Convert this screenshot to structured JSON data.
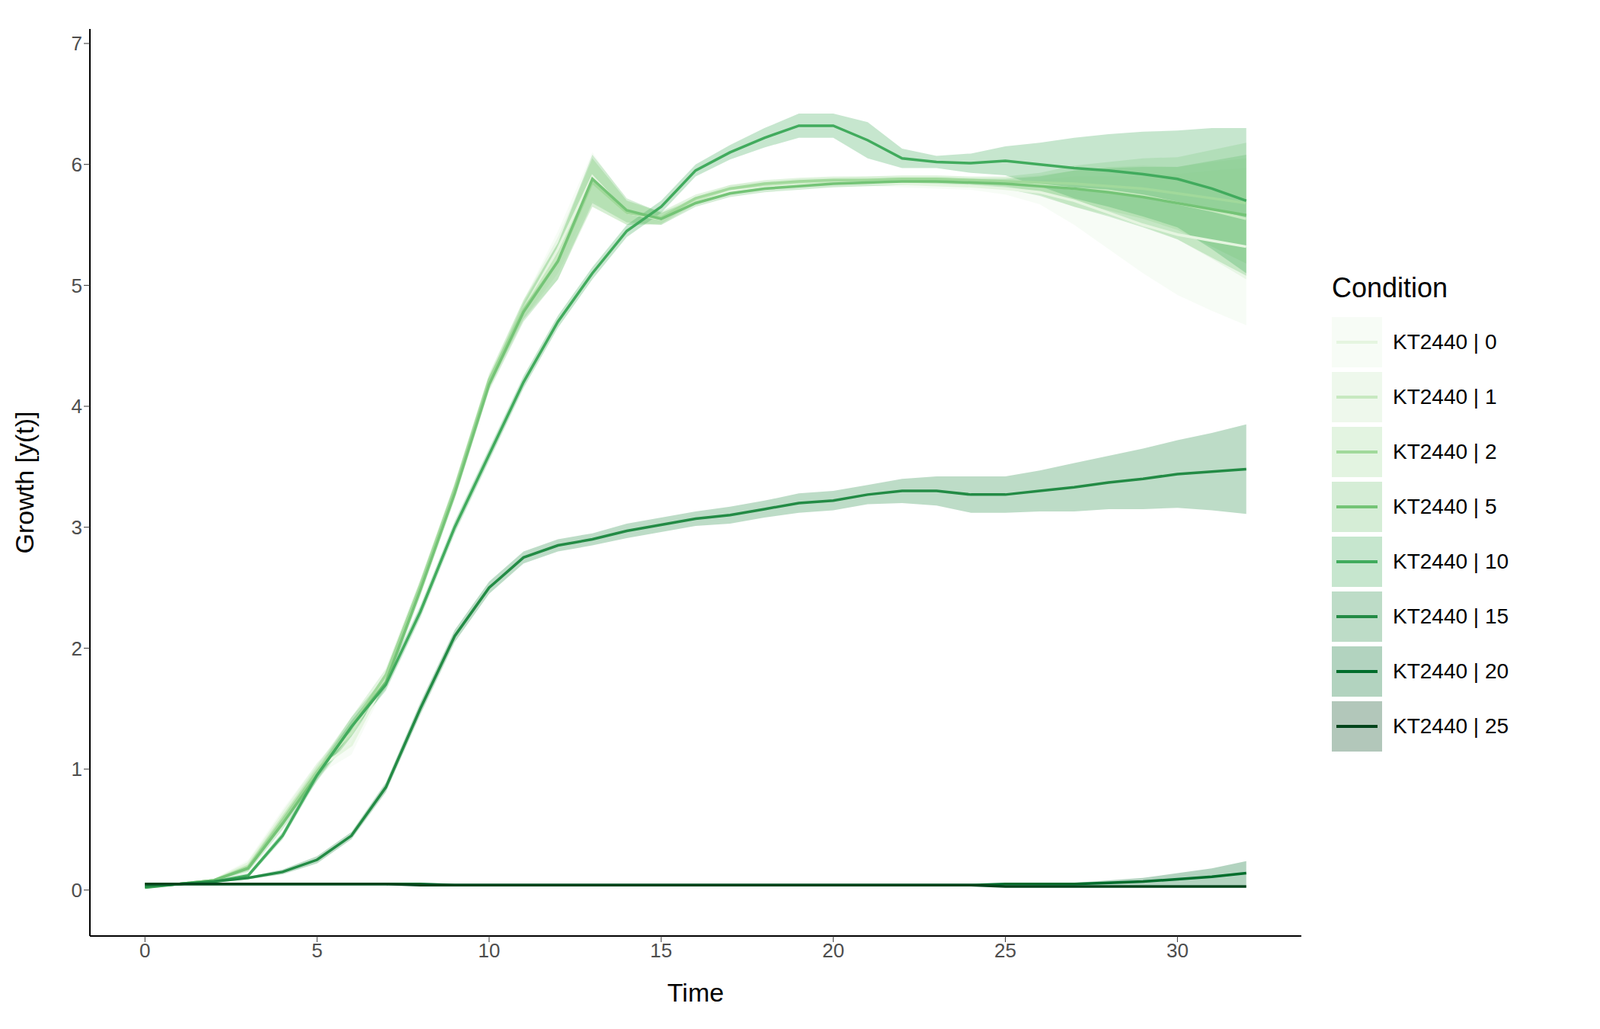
{
  "chart_data": {
    "type": "line",
    "x_label": "Time",
    "y_label": "Growth [y(t)]",
    "legend_title": "Condition",
    "legend": "right",
    "xlim": [
      -1.6,
      33.6
    ],
    "xticks": [
      0,
      5,
      10,
      15,
      20,
      25,
      30
    ],
    "ylim": [
      -0.38,
      7.12
    ],
    "yticks": [
      0,
      1,
      2,
      3,
      4,
      5,
      6,
      7
    ],
    "x": [
      0,
      1,
      2,
      3,
      4,
      5,
      6,
      7,
      8,
      9,
      10,
      11,
      12,
      13,
      14,
      15,
      16,
      17,
      18,
      19,
      20,
      21,
      22,
      23,
      24,
      25,
      26,
      27,
      28,
      29,
      30,
      31,
      32
    ],
    "series": [
      {
        "name": "KT2440 | 0",
        "color": "#e5f5e0",
        "values": [
          0.03,
          0.05,
          0.08,
          0.22,
          0.62,
          1.0,
          1.2,
          1.75,
          2.5,
          3.3,
          4.2,
          4.8,
          5.3,
          5.9,
          5.6,
          5.55,
          5.7,
          5.78,
          5.82,
          5.84,
          5.84,
          5.85,
          5.84,
          5.83,
          5.82,
          5.8,
          5.77,
          5.7,
          5.6,
          5.5,
          5.42,
          5.37,
          5.32
        ],
        "error": [
          0.01,
          0.01,
          0.01,
          0.03,
          0.05,
          0.05,
          0.08,
          0.05,
          0.05,
          0.05,
          0.05,
          0.08,
          0.15,
          0.2,
          0.1,
          0.05,
          0.03,
          0.03,
          0.03,
          0.03,
          0.03,
          0.03,
          0.03,
          0.03,
          0.03,
          0.05,
          0.1,
          0.2,
          0.3,
          0.4,
          0.5,
          0.58,
          0.65
        ]
      },
      {
        "name": "KT2440 | 1",
        "color": "#c7e9c0",
        "values": [
          0.03,
          0.05,
          0.08,
          0.2,
          0.6,
          1.0,
          1.3,
          1.75,
          2.5,
          3.3,
          4.2,
          4.8,
          5.25,
          5.85,
          5.6,
          5.55,
          5.7,
          5.8,
          5.83,
          5.85,
          5.86,
          5.87,
          5.87,
          5.87,
          5.86,
          5.85,
          5.83,
          5.8,
          5.78,
          5.74,
          5.68,
          5.62,
          5.55
        ],
        "error": [
          0.01,
          0.01,
          0.01,
          0.03,
          0.05,
          0.05,
          0.08,
          0.05,
          0.05,
          0.05,
          0.05,
          0.08,
          0.15,
          0.2,
          0.1,
          0.05,
          0.03,
          0.03,
          0.03,
          0.03,
          0.03,
          0.03,
          0.03,
          0.03,
          0.03,
          0.04,
          0.08,
          0.15,
          0.2,
          0.25,
          0.3,
          0.4,
          0.5
        ]
      },
      {
        "name": "KT2440 | 2",
        "color": "#a1d99b",
        "values": [
          0.03,
          0.05,
          0.08,
          0.19,
          0.58,
          0.98,
          1.35,
          1.78,
          2.52,
          3.32,
          4.22,
          4.8,
          5.2,
          5.85,
          5.6,
          5.56,
          5.72,
          5.8,
          5.84,
          5.86,
          5.87,
          5.87,
          5.88,
          5.88,
          5.87,
          5.86,
          5.85,
          5.84,
          5.82,
          5.8,
          5.76,
          5.72,
          5.68
        ],
        "error": [
          0.01,
          0.01,
          0.01,
          0.03,
          0.05,
          0.05,
          0.08,
          0.05,
          0.05,
          0.05,
          0.05,
          0.08,
          0.15,
          0.2,
          0.1,
          0.05,
          0.03,
          0.03,
          0.03,
          0.03,
          0.03,
          0.03,
          0.03,
          0.03,
          0.03,
          0.04,
          0.08,
          0.15,
          0.2,
          0.25,
          0.3,
          0.4,
          0.5
        ]
      },
      {
        "name": "KT2440 | 5",
        "color": "#74c476",
        "values": [
          0.03,
          0.05,
          0.08,
          0.18,
          0.55,
          0.95,
          1.35,
          1.72,
          2.48,
          3.28,
          4.18,
          4.78,
          5.2,
          5.88,
          5.62,
          5.55,
          5.68,
          5.76,
          5.8,
          5.82,
          5.84,
          5.85,
          5.86,
          5.86,
          5.85,
          5.84,
          5.82,
          5.8,
          5.77,
          5.73,
          5.68,
          5.63,
          5.58
        ],
        "error": [
          0.01,
          0.01,
          0.01,
          0.03,
          0.05,
          0.05,
          0.08,
          0.05,
          0.05,
          0.05,
          0.05,
          0.08,
          0.15,
          0.2,
          0.1,
          0.05,
          0.03,
          0.03,
          0.03,
          0.03,
          0.03,
          0.03,
          0.03,
          0.03,
          0.03,
          0.04,
          0.08,
          0.15,
          0.2,
          0.25,
          0.3,
          0.4,
          0.5
        ]
      },
      {
        "name": "KT2440 | 10",
        "color": "#41ab5d",
        "values": [
          0.02,
          0.05,
          0.07,
          0.12,
          0.45,
          0.95,
          1.35,
          1.7,
          2.3,
          3.0,
          3.6,
          4.2,
          4.7,
          5.1,
          5.45,
          5.65,
          5.95,
          6.1,
          6.22,
          6.32,
          6.32,
          6.2,
          6.05,
          6.02,
          6.01,
          6.03,
          6.0,
          5.97,
          5.95,
          5.92,
          5.88,
          5.8,
          5.7
        ],
        "error": [
          0.01,
          0.01,
          0.01,
          0.02,
          0.03,
          0.04,
          0.05,
          0.05,
          0.05,
          0.05,
          0.05,
          0.05,
          0.05,
          0.05,
          0.05,
          0.05,
          0.05,
          0.06,
          0.08,
          0.1,
          0.1,
          0.15,
          0.08,
          0.05,
          0.08,
          0.12,
          0.18,
          0.25,
          0.3,
          0.35,
          0.4,
          0.5,
          0.6
        ]
      },
      {
        "name": "KT2440 | 15",
        "color": "#238b45",
        "values": [
          0.03,
          0.05,
          0.07,
          0.1,
          0.15,
          0.25,
          0.45,
          0.85,
          1.5,
          2.1,
          2.5,
          2.75,
          2.85,
          2.9,
          2.97,
          3.02,
          3.07,
          3.1,
          3.15,
          3.2,
          3.22,
          3.27,
          3.3,
          3.3,
          3.27,
          3.27,
          3.3,
          3.33,
          3.37,
          3.4,
          3.44,
          3.46,
          3.48
        ],
        "error": [
          0.01,
          0.01,
          0.01,
          0.01,
          0.02,
          0.03,
          0.03,
          0.04,
          0.05,
          0.05,
          0.05,
          0.05,
          0.05,
          0.05,
          0.06,
          0.06,
          0.06,
          0.07,
          0.07,
          0.08,
          0.08,
          0.08,
          0.1,
          0.12,
          0.15,
          0.15,
          0.17,
          0.2,
          0.22,
          0.25,
          0.28,
          0.32,
          0.37
        ]
      },
      {
        "name": "KT2440 | 20",
        "color": "#006d2c",
        "values": [
          0.05,
          0.05,
          0.05,
          0.05,
          0.05,
          0.05,
          0.05,
          0.05,
          0.05,
          0.04,
          0.04,
          0.04,
          0.04,
          0.04,
          0.04,
          0.04,
          0.04,
          0.04,
          0.04,
          0.04,
          0.04,
          0.04,
          0.04,
          0.04,
          0.04,
          0.05,
          0.05,
          0.05,
          0.06,
          0.07,
          0.09,
          0.11,
          0.14
        ],
        "error": [
          0.005,
          0.005,
          0.005,
          0.005,
          0.005,
          0.005,
          0.005,
          0.005,
          0.005,
          0.005,
          0.005,
          0.005,
          0.005,
          0.005,
          0.005,
          0.005,
          0.005,
          0.005,
          0.005,
          0.005,
          0.005,
          0.005,
          0.005,
          0.005,
          0.005,
          0.005,
          0.01,
          0.01,
          0.02,
          0.03,
          0.05,
          0.07,
          0.1
        ]
      },
      {
        "name": "KT2440 | 25",
        "color": "#00441b",
        "values": [
          0.05,
          0.05,
          0.05,
          0.05,
          0.05,
          0.05,
          0.05,
          0.05,
          0.04,
          0.04,
          0.04,
          0.04,
          0.04,
          0.04,
          0.04,
          0.04,
          0.04,
          0.04,
          0.04,
          0.04,
          0.04,
          0.04,
          0.04,
          0.04,
          0.04,
          0.03,
          0.03,
          0.03,
          0.03,
          0.03,
          0.03,
          0.03,
          0.03
        ],
        "error": [
          0.005,
          0.005,
          0.005,
          0.005,
          0.005,
          0.005,
          0.005,
          0.005,
          0.005,
          0.005,
          0.005,
          0.005,
          0.005,
          0.005,
          0.005,
          0.005,
          0.005,
          0.005,
          0.005,
          0.005,
          0.005,
          0.005,
          0.005,
          0.005,
          0.005,
          0.005,
          0.005,
          0.005,
          0.005,
          0.005,
          0.005,
          0.005,
          0.005
        ]
      }
    ]
  }
}
